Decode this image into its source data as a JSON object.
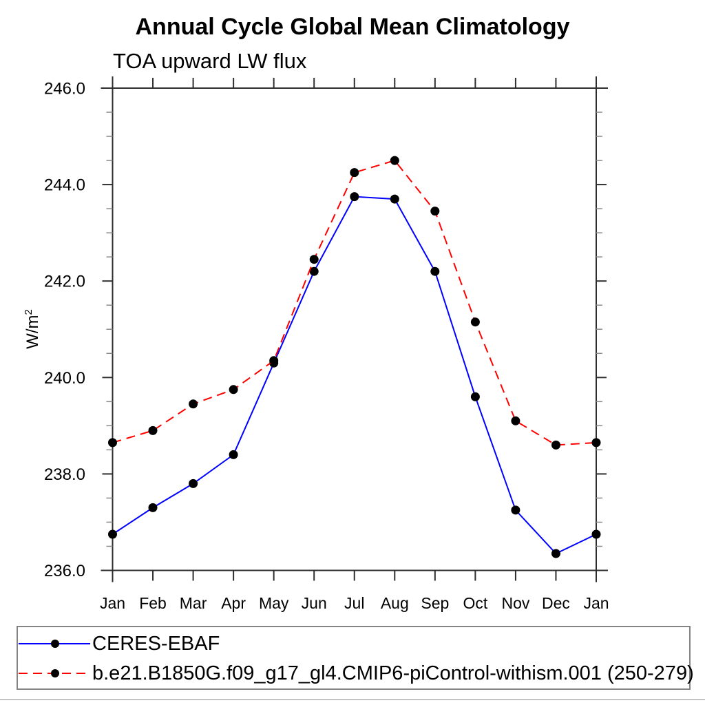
{
  "chart_data": {
    "type": "line",
    "title": "Annual Cycle Global Mean Climatology",
    "subtitle": "TOA upward LW flux",
    "ylabel": "W/m²",
    "ylabel_parts": {
      "base": "W/m",
      "exp": "2"
    },
    "categories": [
      "Jan",
      "Feb",
      "Mar",
      "Apr",
      "May",
      "Jun",
      "Jul",
      "Aug",
      "Sep",
      "Oct",
      "Nov",
      "Dec",
      "Jan"
    ],
    "ylim": [
      236.0,
      246.0
    ],
    "ytick_step": 2.0,
    "ytick_minor_step": 0.5,
    "ytick_labels": [
      "236.0",
      "238.0",
      "240.0",
      "242.0",
      "244.0",
      "246.0"
    ],
    "grid": false,
    "legend_position": "bottom",
    "series": [
      {
        "name": "CERES-EBAF",
        "color": "#0000ff",
        "line_style": "solid",
        "marker": "circle",
        "marker_color": "#000000",
        "values": [
          236.75,
          237.3,
          237.8,
          238.4,
          240.3,
          242.2,
          243.75,
          243.7,
          242.2,
          239.6,
          237.25,
          236.35,
          236.75
        ]
      },
      {
        "name": "b.e21.B1850G.f09_g17_gl4.CMIP6-piControl-withism.001 (250-279)",
        "color": "#ff0000",
        "line_style": "dashed",
        "marker": "circle",
        "marker_color": "#000000",
        "values": [
          238.65,
          238.9,
          239.45,
          239.75,
          240.35,
          242.45,
          244.25,
          244.5,
          243.45,
          241.15,
          239.1,
          238.6,
          238.65
        ]
      }
    ]
  }
}
